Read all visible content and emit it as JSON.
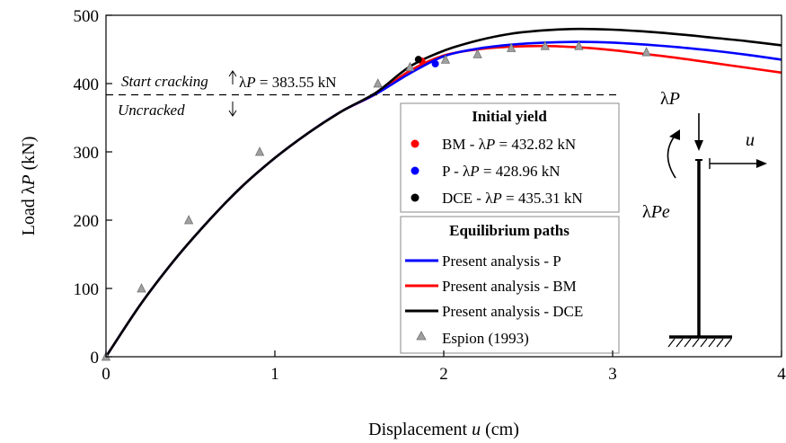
{
  "chart_data": {
    "type": "line",
    "xlabel": "Displacement u (cm)",
    "xlabel_parts": [
      "Displacement ",
      "u",
      " (cm)"
    ],
    "ylabel": "Load λP (kN)",
    "ylabel_parts": [
      "Load λ",
      "P",
      " (kN)"
    ],
    "xlim": [
      0,
      4
    ],
    "ylim": [
      0,
      500
    ],
    "xticks": [
      0,
      1,
      2,
      3,
      4
    ],
    "yticks": [
      0,
      100,
      200,
      300,
      400,
      500
    ],
    "grid": false,
    "series": [
      {
        "name": "Present analysis - P",
        "color": "#0000ff",
        "points": [
          [
            0,
            0
          ],
          [
            0.2,
            75
          ],
          [
            0.4,
            140
          ],
          [
            0.6,
            197
          ],
          [
            0.8,
            248
          ],
          [
            1.0,
            291
          ],
          [
            1.2,
            328
          ],
          [
            1.4,
            360
          ],
          [
            1.6,
            385
          ],
          [
            1.8,
            415
          ],
          [
            2.0,
            440
          ],
          [
            2.2,
            451
          ],
          [
            2.4,
            457
          ],
          [
            2.6,
            460
          ],
          [
            2.8,
            461
          ],
          [
            3.0,
            460
          ],
          [
            3.2,
            457
          ],
          [
            3.4,
            453
          ],
          [
            3.6,
            448
          ],
          [
            3.8,
            442
          ],
          [
            4.0,
            435
          ]
        ]
      },
      {
        "name": "Present analysis - BM",
        "color": "#ff0000",
        "points": [
          [
            0,
            0
          ],
          [
            0.2,
            75
          ],
          [
            0.4,
            140
          ],
          [
            0.6,
            197
          ],
          [
            0.8,
            248
          ],
          [
            1.0,
            291
          ],
          [
            1.2,
            328
          ],
          [
            1.4,
            360
          ],
          [
            1.6,
            385
          ],
          [
            1.8,
            419
          ],
          [
            2.0,
            441
          ],
          [
            2.2,
            450
          ],
          [
            2.4,
            454
          ],
          [
            2.6,
            455
          ],
          [
            2.8,
            453
          ],
          [
            3.0,
            449
          ],
          [
            3.2,
            443
          ],
          [
            3.4,
            437
          ],
          [
            3.6,
            430
          ],
          [
            3.8,
            423
          ],
          [
            4.0,
            416
          ]
        ]
      },
      {
        "name": "Present analysis - DCE",
        "color": "#000000",
        "points": [
          [
            0,
            0
          ],
          [
            0.2,
            75
          ],
          [
            0.4,
            140
          ],
          [
            0.6,
            197
          ],
          [
            0.8,
            248
          ],
          [
            1.0,
            291
          ],
          [
            1.2,
            328
          ],
          [
            1.4,
            360
          ],
          [
            1.6,
            387
          ],
          [
            1.8,
            425
          ],
          [
            2.0,
            448
          ],
          [
            2.2,
            463
          ],
          [
            2.4,
            473
          ],
          [
            2.6,
            478
          ],
          [
            2.8,
            480
          ],
          [
            3.0,
            479
          ],
          [
            3.2,
            476
          ],
          [
            3.4,
            472
          ],
          [
            3.6,
            467
          ],
          [
            3.8,
            462
          ],
          [
            4.0,
            456
          ]
        ]
      }
    ],
    "experimental": {
      "name": "Espion (1993)",
      "color": "#a0a0a0",
      "points": [
        [
          0,
          0
        ],
        [
          0.21,
          100
        ],
        [
          0.49,
          200
        ],
        [
          0.91,
          300
        ],
        [
          1.61,
          400
        ],
        [
          1.8,
          424
        ],
        [
          2.01,
          435
        ],
        [
          2.2,
          443
        ],
        [
          2.4,
          452
        ],
        [
          2.6,
          455
        ],
        [
          2.8,
          455
        ],
        [
          3.2,
          446
        ]
      ]
    },
    "yield_points": [
      {
        "label": "BM - λP = 432.82 kN",
        "label_parts": [
          "BM - λ",
          "P",
          " = 432.82 kN"
        ],
        "color": "#ff0000",
        "x": 1.87,
        "y": 432.82
      },
      {
        "label": "P - λP = 428.96 kN",
        "label_parts": [
          "P - λ",
          "P",
          " = 428.96 kN"
        ],
        "color": "#0000ff",
        "x": 1.95,
        "y": 428.96
      },
      {
        "label": "DCE - λP = 435.31 kN",
        "label_parts": [
          "DCE - λ",
          "P",
          " = 435.31 kN"
        ],
        "color": "#000000",
        "x": 1.85,
        "y": 435.31
      }
    ],
    "cracking_line": {
      "y": 383.55
    },
    "annotations": {
      "start_cracking": "Start cracking",
      "cracking_value_parts": [
        "λ",
        "P",
        " = 383.55 kN"
      ],
      "uncracked": "Uncracked"
    },
    "legend_yield": {
      "title": "Initial yield",
      "position": "center-right"
    },
    "legend_paths": {
      "title": "Equilibrium paths",
      "position": "lower-right"
    },
    "schematic": {
      "load_parts": [
        "λ",
        "P"
      ],
      "moment_parts": [
        "λ",
        "Pe"
      ],
      "disp": "u"
    }
  }
}
